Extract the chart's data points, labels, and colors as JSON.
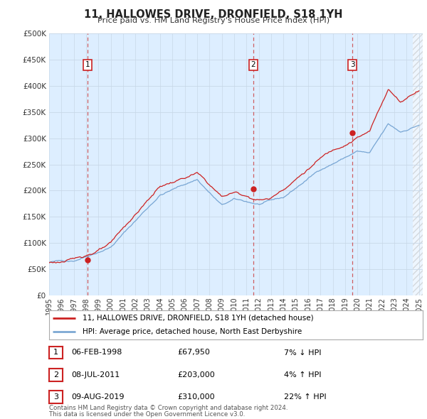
{
  "title": "11, HALLOWES DRIVE, DRONFIELD, S18 1YH",
  "subtitle": "Price paid vs. HM Land Registry's House Price Index (HPI)",
  "legend_line1": "11, HALLOWES DRIVE, DRONFIELD, S18 1YH (detached house)",
  "legend_line2": "HPI: Average price, detached house, North East Derbyshire",
  "transactions": [
    {
      "num": 1,
      "date": "06-FEB-1998",
      "price": 67950,
      "year": 1998.1,
      "hpi_note": "7% ↓ HPI"
    },
    {
      "num": 2,
      "date": "08-JUL-2011",
      "price": 203000,
      "year": 2011.54,
      "hpi_note": "4% ↑ HPI"
    },
    {
      "num": 3,
      "date": "09-AUG-2019",
      "price": 310000,
      "year": 2019.61,
      "hpi_note": "22% ↑ HPI"
    }
  ],
  "footer1": "Contains HM Land Registry data © Crown copyright and database right 2024.",
  "footer2": "This data is licensed under the Open Government Licence v3.0.",
  "ylim": [
    0,
    500000
  ],
  "yticks": [
    0,
    50000,
    100000,
    150000,
    200000,
    250000,
    300000,
    350000,
    400000,
    450000,
    500000
  ],
  "xlim_start": 1995,
  "xlim_end": 2025.3,
  "bg_color": "#ddeeff",
  "grid_color": "#ccddee",
  "hpi_color": "#6699cc",
  "price_color": "#cc2222",
  "dashed_color": "#cc4444",
  "box_color": "#cc2222",
  "hatch_color": "#cccccc"
}
